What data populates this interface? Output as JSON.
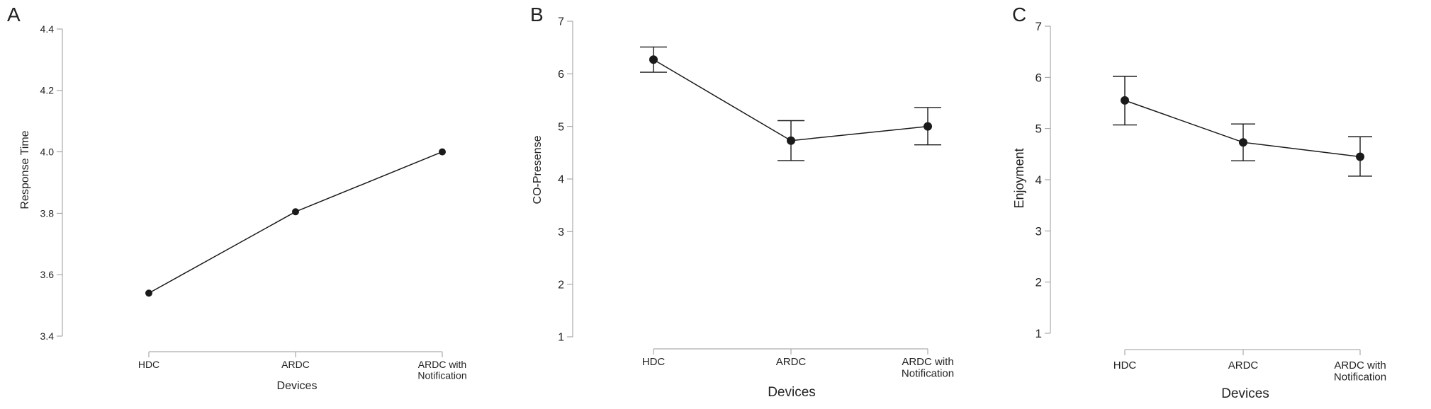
{
  "chart_data": [
    {
      "type": "line",
      "panel_letter": "A",
      "title": "",
      "xlabel": "Devices",
      "ylabel": "Response Time",
      "categories": [
        "HDC",
        "ARDC",
        "ARDC with Notification"
      ],
      "category_lines": [
        [
          "HDC"
        ],
        [
          "ARDC"
        ],
        [
          "ARDC with",
          "Notification"
        ]
      ],
      "values": [
        3.54,
        3.805,
        4.0
      ],
      "error_bars": null,
      "ylim": [
        3.4,
        4.4
      ],
      "yticks": [
        3.4,
        3.6,
        3.8,
        4.0,
        4.2,
        4.4
      ],
      "ytick_labels": [
        "3.4",
        "3.6",
        "3.8",
        "4.0",
        "4.2",
        "4.4"
      ],
      "grid": false,
      "colors": {
        "line": "#1a1a1a",
        "axis": "#9a9a9a"
      }
    },
    {
      "type": "line",
      "panel_letter": "B",
      "title": "",
      "xlabel": "Devices",
      "ylabel": "CO-Presense",
      "categories": [
        "HDC",
        "ARDC",
        "ARDC with Notification"
      ],
      "category_lines": [
        [
          "HDC"
        ],
        [
          "ARDC"
        ],
        [
          "ARDC with",
          "Notification"
        ]
      ],
      "values": [
        6.27,
        4.73,
        5.0
      ],
      "error_bars": [
        [
          6.03,
          6.51
        ],
        [
          4.35,
          5.11
        ],
        [
          4.65,
          5.36
        ]
      ],
      "ylim": [
        1,
        7
      ],
      "yticks": [
        1,
        2,
        3,
        4,
        5,
        6,
        7
      ],
      "ytick_labels": [
        "1",
        "2",
        "3",
        "4",
        "5",
        "6",
        "7"
      ],
      "grid": false,
      "colors": {
        "line": "#1a1a1a",
        "axis": "#9a9a9a"
      }
    },
    {
      "type": "line",
      "panel_letter": "C",
      "title": "",
      "xlabel": "Devices",
      "ylabel": "Enjoyment",
      "categories": [
        "HDC",
        "ARDC",
        "ARDC with Notification"
      ],
      "category_lines": [
        [
          "HDC"
        ],
        [
          "ARDC"
        ],
        [
          "ARDC with",
          "Notification"
        ]
      ],
      "values": [
        5.55,
        4.73,
        4.45
      ],
      "error_bars": [
        [
          5.07,
          6.02
        ],
        [
          4.37,
          5.09
        ],
        [
          4.07,
          4.84
        ]
      ],
      "ylim": [
        1,
        7
      ],
      "yticks": [
        1,
        2,
        3,
        4,
        5,
        6,
        7
      ],
      "ytick_labels": [
        "1",
        "2",
        "3",
        "4",
        "5",
        "6",
        "7"
      ],
      "grid": false,
      "colors": {
        "line": "#1a1a1a",
        "axis": "#9a9a9a"
      }
    }
  ]
}
